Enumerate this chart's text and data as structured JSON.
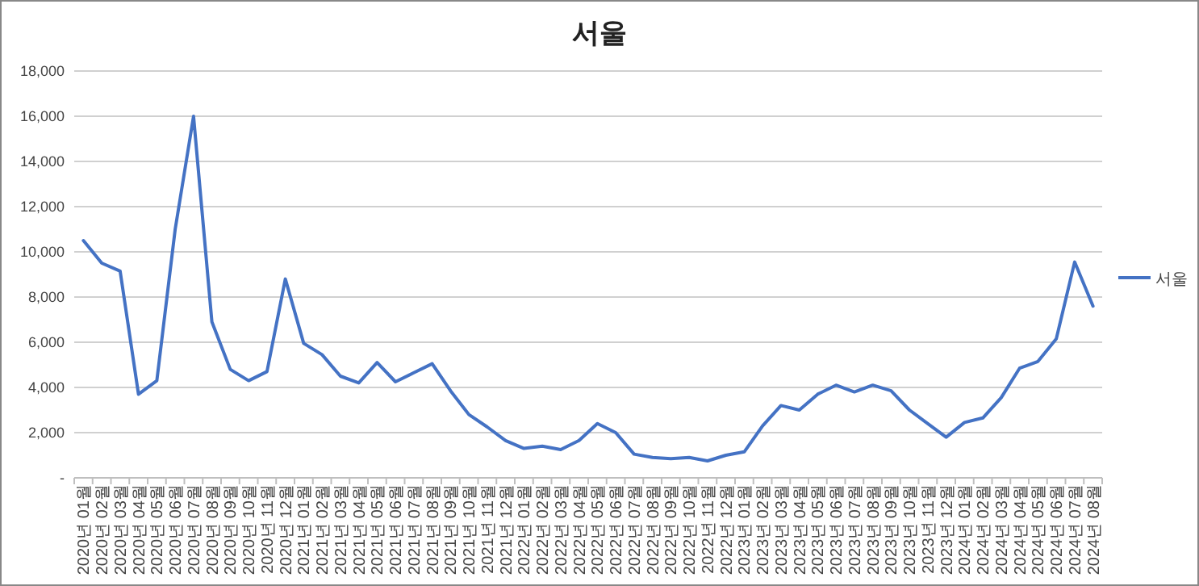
{
  "chart_data": {
    "type": "line",
    "title": "서울",
    "categories": [
      "2020년 01월",
      "2020년 02월",
      "2020년 03월",
      "2020년 04월",
      "2020년 05월",
      "2020년 06월",
      "2020년 07월",
      "2020년 08월",
      "2020년 09월",
      "2020년 10월",
      "2020년 11월",
      "2020년 12월",
      "2021년 01월",
      "2021년 02월",
      "2021년 03월",
      "2021년 04월",
      "2021년 05월",
      "2021년 06월",
      "2021년 07월",
      "2021년 08월",
      "2021년 09월",
      "2021년 10월",
      "2021년 11월",
      "2021년 12월",
      "2022년 01월",
      "2022년 02월",
      "2022년 03월",
      "2022년 04월",
      "2022년 05월",
      "2022년 06월",
      "2022년 07월",
      "2022년 08월",
      "2022년 09월",
      "2022년 10월",
      "2022년 11월",
      "2022년 12월",
      "2023년 01월",
      "2023년 02월",
      "2023년 03월",
      "2023년 04월",
      "2023년 05월",
      "2023년 06월",
      "2023년 07월",
      "2023년 08월",
      "2023년 09월",
      "2023년 10월",
      "2023년 11월",
      "2023년 12월",
      "2024년 01월",
      "2024년 02월",
      "2024년 03월",
      "2024년 04월",
      "2024년 05월",
      "2024년 06월",
      "2024년 07월",
      "2024년 08월"
    ],
    "series": [
      {
        "name": "서울",
        "color": "#4472c4",
        "values": [
          10500,
          9500,
          9150,
          3700,
          4300,
          11000,
          16000,
          6900,
          4800,
          4300,
          4700,
          8800,
          5950,
          5450,
          4500,
          4200,
          5100,
          4250,
          4650,
          5050,
          3850,
          2800,
          2250,
          1650,
          1300,
          1400,
          1250,
          1650,
          2400,
          2000,
          1050,
          900,
          850,
          900,
          750,
          1000,
          1150,
          2300,
          3200,
          3000,
          3700,
          4100,
          3800,
          4100,
          3850,
          3000,
          2400,
          1800,
          2450,
          2650,
          3550,
          4850,
          5150,
          6150,
          9550,
          7600
        ]
      }
    ],
    "ylim": [
      0,
      18000
    ],
    "yticks": [
      {
        "value": 0,
        "label": "-"
      },
      {
        "value": 2000,
        "label": "2,000"
      },
      {
        "value": 4000,
        "label": "4,000"
      },
      {
        "value": 6000,
        "label": "6,000"
      },
      {
        "value": 8000,
        "label": "8,000"
      },
      {
        "value": 10000,
        "label": "10,000"
      },
      {
        "value": 12000,
        "label": "12,000"
      },
      {
        "value": 14000,
        "label": "14,000"
      },
      {
        "value": 16000,
        "label": "16,000"
      },
      {
        "value": 18000,
        "label": "18,000"
      }
    ],
    "grid": "y",
    "legend": "right",
    "marker": "none",
    "line_style": "solid"
  }
}
